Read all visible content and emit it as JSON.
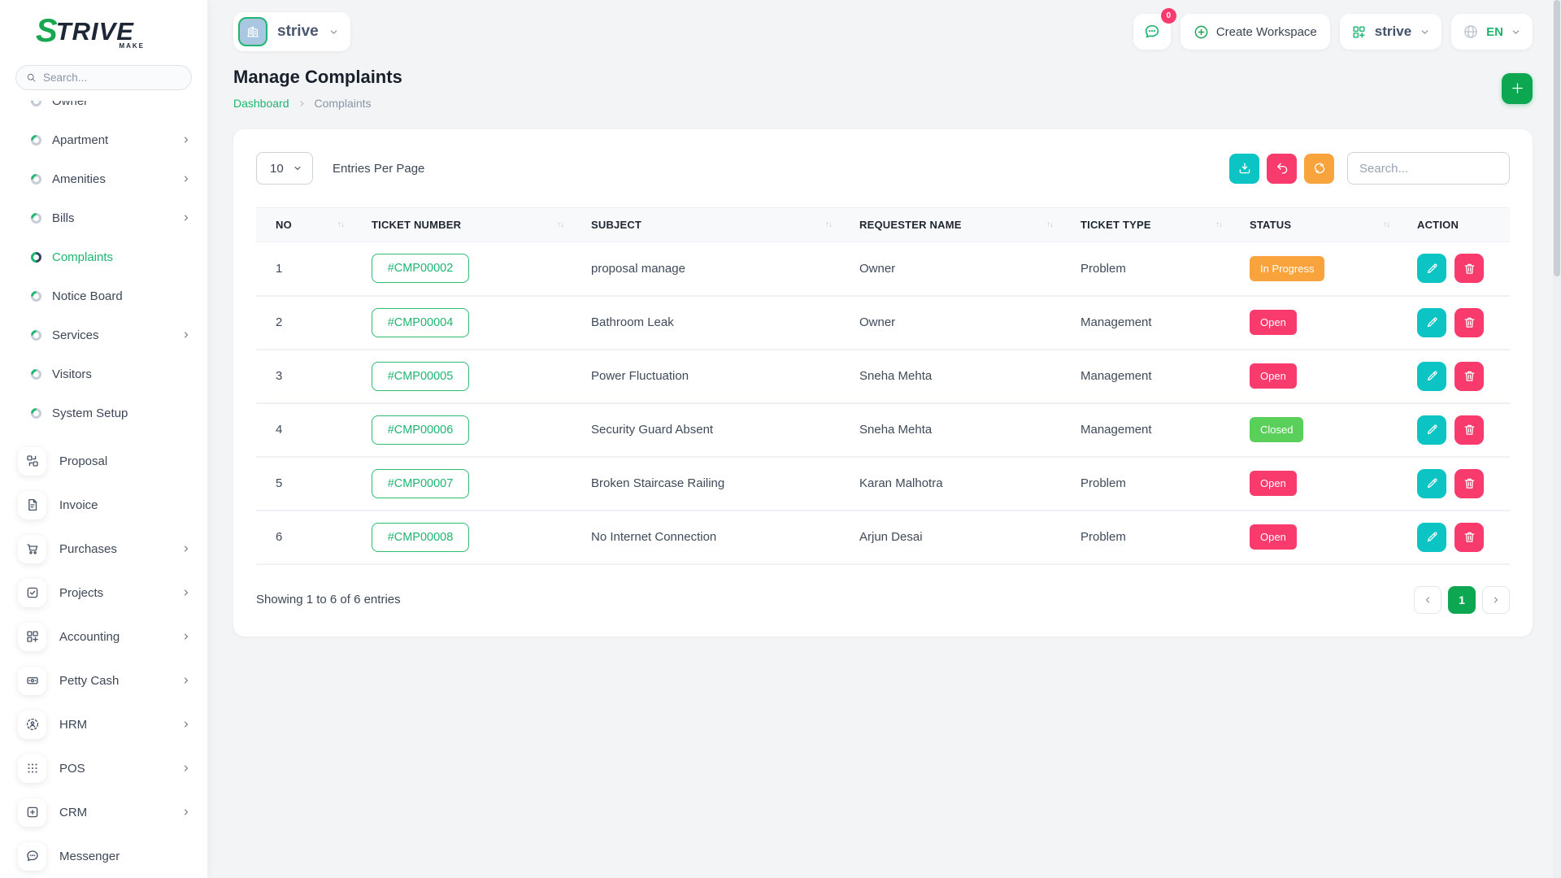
{
  "app": {
    "logo_s": "S",
    "logo_rest": "TRIVE",
    "logo_sub": "MAKE"
  },
  "header": {
    "workspace_dropdown": {
      "label": "strive",
      "icon": "building"
    },
    "chat": {
      "icon": "chat-bubble",
      "badge": "0"
    },
    "create_workspace": {
      "label": "Create Workspace",
      "icon": "circle-plus"
    },
    "workspace_selector": {
      "label": "strive",
      "icon": "grid-plus"
    },
    "language": {
      "label": "EN",
      "icon": "globe"
    }
  },
  "sidebar": {
    "search_placeholder": "Search...",
    "groups": [
      {
        "items": [
          {
            "label": "Owner",
            "chevron": false,
            "active": false
          },
          {
            "label": "Apartment",
            "chevron": true,
            "active": false
          },
          {
            "label": "Amenities",
            "chevron": true,
            "active": false
          },
          {
            "label": "Bills",
            "chevron": true,
            "active": false
          },
          {
            "label": "Complaints",
            "chevron": false,
            "active": true
          },
          {
            "label": "Notice Board",
            "chevron": false,
            "active": false
          },
          {
            "label": "Services",
            "chevron": true,
            "active": false
          },
          {
            "label": "Visitors",
            "chevron": false,
            "active": false
          },
          {
            "label": "System Setup",
            "chevron": false,
            "active": false
          }
        ]
      },
      {
        "items": [
          {
            "label": "Proposal",
            "icon": "swap-grid",
            "chevron": false
          },
          {
            "label": "Invoice",
            "icon": "file",
            "chevron": false
          },
          {
            "label": "Purchases",
            "icon": "cart",
            "chevron": true
          },
          {
            "label": "Projects",
            "icon": "check-square",
            "chevron": true
          },
          {
            "label": "Accounting",
            "icon": "grid-plus",
            "chevron": true
          },
          {
            "label": "Petty Cash",
            "icon": "wallet",
            "chevron": true
          },
          {
            "label": "HRM",
            "icon": "person-dashed",
            "chevron": true
          },
          {
            "label": "POS",
            "icon": "dots-grid",
            "chevron": true
          },
          {
            "label": "CRM",
            "icon": "file-plus",
            "chevron": true
          },
          {
            "label": "Messenger",
            "icon": "chat-bubble",
            "chevron": false
          }
        ]
      }
    ]
  },
  "page": {
    "title": "Manage Complaints",
    "breadcrumb": [
      "Dashboard",
      "Complaints"
    ]
  },
  "toolbar": {
    "entries_value": "10",
    "entries_label": "Entries Per Page",
    "search_placeholder": "Search...",
    "buttons": [
      {
        "icon": "download",
        "color": "#0DC4C4",
        "name": "export-button"
      },
      {
        "icon": "undo",
        "color": "#F93A6C",
        "name": "reset-button"
      },
      {
        "icon": "refresh",
        "color": "#F8A33C",
        "name": "refresh-button"
      }
    ]
  },
  "table": {
    "columns": [
      {
        "label": "NO",
        "sortable": true
      },
      {
        "label": "TICKET NUMBER",
        "sortable": true
      },
      {
        "label": "SUBJECT",
        "sortable": true
      },
      {
        "label": "REQUESTER NAME",
        "sortable": true
      },
      {
        "label": "TICKET TYPE",
        "sortable": true
      },
      {
        "label": "STATUS",
        "sortable": true
      },
      {
        "label": "ACTION",
        "sortable": false
      }
    ],
    "rows": [
      {
        "no": "1",
        "ticket": "#CMP00002",
        "subject": "proposal manage",
        "requester": "Owner",
        "type": "Problem",
        "status": "In Progress",
        "status_color": "#F8A33C"
      },
      {
        "no": "2",
        "ticket": "#CMP00004",
        "subject": "Bathroom Leak",
        "requester": "Owner",
        "type": "Management",
        "status": "Open",
        "status_color": "#F93A6C"
      },
      {
        "no": "3",
        "ticket": "#CMP00005",
        "subject": "Power Fluctuation",
        "requester": "Sneha Mehta",
        "type": "Management",
        "status": "Open",
        "status_color": "#F93A6C"
      },
      {
        "no": "4",
        "ticket": "#CMP00006",
        "subject": "Security Guard Absent",
        "requester": "Sneha Mehta",
        "type": "Management",
        "status": "Closed",
        "status_color": "#5AD05A"
      },
      {
        "no": "5",
        "ticket": "#CMP00007",
        "subject": "Broken Staircase Railing",
        "requester": "Karan Malhotra",
        "type": "Problem",
        "status": "Open",
        "status_color": "#F93A6C"
      },
      {
        "no": "6",
        "ticket": "#CMP00008",
        "subject": "No Internet Connection",
        "requester": "Arjun Desai",
        "type": "Problem",
        "status": "Open",
        "status_color": "#F93A6C"
      }
    ]
  },
  "footer": {
    "showing_text": "Showing 1 to 6 of 6 entries",
    "current_page": "1"
  },
  "colors": {
    "primary_green": "#0CA750",
    "link_green": "#1DB671",
    "teal": "#0DC4C4",
    "pink": "#F93A6C",
    "orange": "#F8A33C",
    "closed_green": "#5AD05A",
    "edit_button": "#0DC4C4",
    "delete_button": "#F93A6C"
  }
}
